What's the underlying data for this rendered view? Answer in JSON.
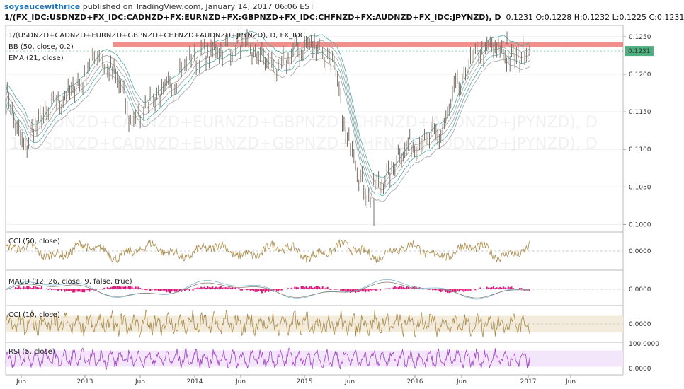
{
  "header": {
    "author": "soysaucewithrice",
    "published_text": "published on TradingView.com, January 14, 2017 06:06 EST",
    "symbol": "1/(FX_IDC:USDNZD+FX_IDC:CADNZD+FX:EURNZD+FX:GBPNZD+FX_IDC:CHFNZD+FX:AUDNZD+FX_IDC:JPYNZD), D",
    "ohlc": "0.1231 O:0.1228 H:0.1232 L:0.1225 C:0.1231"
  },
  "colors": {
    "price_line": "#7a6f65",
    "band_teal": "#4fa9a3",
    "band_grey": "#9ea3a8",
    "resistance_zone": "#ef7b7b",
    "price_tag": "#4caf7d",
    "cci": "#a98c4a",
    "macd_hist": "#e0197d",
    "macd_line": "#79b7d4",
    "signal_line": "#8a7f75",
    "rsi": "#a244c4",
    "rsi_band": "#f4e6fa",
    "cci_band": "#f3ebdc"
  },
  "chart_data": [
    {
      "type": "line",
      "pane": "main",
      "title": "1/(USDNZD+CADNZD+EURNZD+GBPNZD+CHFNZD+AUDNZD+JPYNZD), D, FX_IDC",
      "watermark": "1/(USDNZD+CADNZD+EURNZD+GBPNZD+CHFNZD+AUDNZD+JPYNZD), D",
      "indicators": [
        "BB (50, close, 0.2)",
        "EMA (21, close)"
      ],
      "x": [
        "2012-05",
        "2012-07",
        "2012-09",
        "2012-11",
        "2013-01",
        "2013-03",
        "2013-04",
        "2013-06",
        "2013-08",
        "2013-10",
        "2013-12",
        "2014-02",
        "2014-04",
        "2014-06",
        "2014-08",
        "2014-10",
        "2014-12",
        "2015-02",
        "2015-04",
        "2015-06",
        "2015-08",
        "2015-10",
        "2015-12",
        "2016-02",
        "2016-04",
        "2016-06",
        "2016-08",
        "2016-10",
        "2016-12",
        "2017-01"
      ],
      "series": [
        {
          "values": [
            0.117,
            0.1105,
            0.114,
            0.1165,
            0.1185,
            0.1225,
            0.12,
            0.114,
            0.1165,
            0.118,
            0.1215,
            0.1225,
            0.1235,
            0.124,
            0.1225,
            0.1205,
            0.123,
            0.124,
            0.122,
            0.111,
            0.104,
            0.106,
            0.11,
            0.111,
            0.112,
            0.118,
            0.1225,
            0.1235,
            0.122,
            0.1231
          ]
        }
      ],
      "resistance_zone": [
        0.1236,
        0.1243
      ],
      "last_price_label": "0.1231",
      "y_ticks": [
        "0.1250",
        "0.1200",
        "0.1150",
        "0.1100",
        "0.1050",
        "0.1000"
      ],
      "ylim": [
        0.099,
        0.1265
      ]
    },
    {
      "type": "line",
      "pane": "cci50",
      "title": "CCI (50, close)",
      "zero_label": "0.0000"
    },
    {
      "type": "line",
      "pane": "macd",
      "title": "MACD (12, 26, close, 9, false, true)",
      "zero_label": "0.0000"
    },
    {
      "type": "line",
      "pane": "cci10",
      "title": "CCI (10, close)",
      "zero_label": "0.0000"
    },
    {
      "type": "line",
      "pane": "rsi",
      "title": "RSI (5, close)",
      "y_ticks": [
        "100.0000",
        "0.0000"
      ]
    }
  ],
  "x_axis": {
    "labels": [
      "Jun",
      "2013",
      "Jun",
      "2014",
      "Jun",
      "2015",
      "Jun",
      "2016",
      "Jun",
      "2017",
      "Jun"
    ]
  }
}
